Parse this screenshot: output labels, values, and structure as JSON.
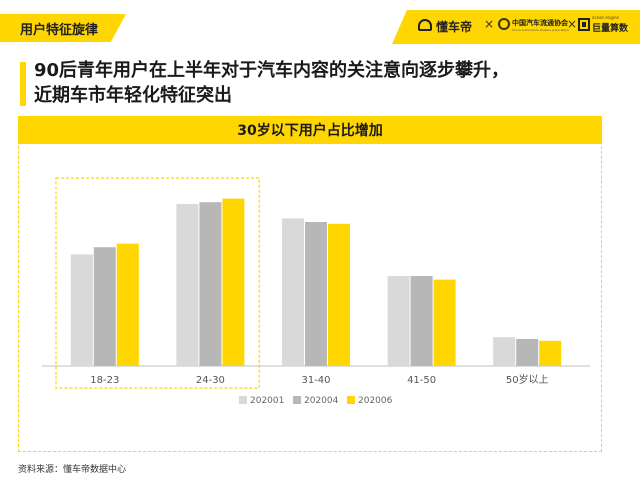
{
  "header": {
    "section_tag": "用户特征旋律",
    "brands": {
      "dongchedi": "懂车帝",
      "separator": "×",
      "association": "中国汽车流通协会",
      "association_sub": "China Automobile Dealers Association",
      "juliang_sub": "ocean engine",
      "juliang": "巨量算数"
    }
  },
  "headline": {
    "line1": "90后青年用户在上半年对于汽车内容的关注意向逐步攀升，",
    "line2": "近期车市年轻化特征突出"
  },
  "colors": {
    "accent": "#ffd600",
    "series": [
      "#d9d9d9",
      "#b7b7b7",
      "#ffd600"
    ]
  },
  "chart_data": {
    "type": "bar",
    "title": "30岁以下用户占比增加",
    "categories": [
      "18-23",
      "24-30",
      "31-40",
      "41-50",
      "50岁以上"
    ],
    "series": [
      {
        "name": "202001",
        "values": [
          31,
          45,
          41,
          25,
          8
        ]
      },
      {
        "name": "202004",
        "values": [
          33,
          45.5,
          40,
          25,
          7.5
        ]
      },
      {
        "name": "202006",
        "values": [
          34,
          46.5,
          39.5,
          24,
          7
        ]
      }
    ],
    "ylim": [
      0,
      55
    ],
    "grid": false,
    "legend": "bottom-center",
    "highlight_categories": [
      "18-23",
      "24-30"
    ]
  },
  "footer": {
    "source": "资料来源：懂车帝数据中心"
  }
}
